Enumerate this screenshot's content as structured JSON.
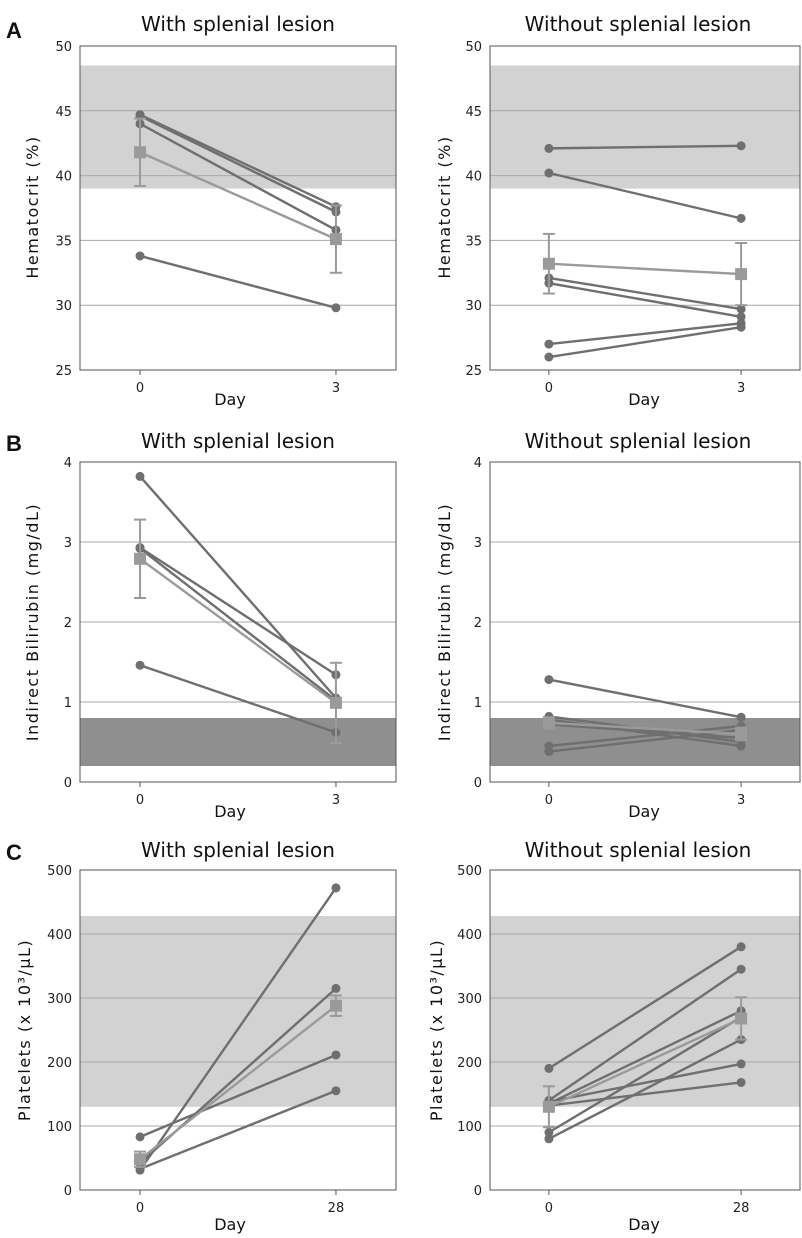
{
  "figure": {
    "panels": [
      {
        "letter": "A"
      },
      {
        "letter": "B"
      },
      {
        "letter": "C"
      }
    ]
  },
  "colors": {
    "individual_line": "#6f6f6f",
    "mean_line": "#9a9a9a",
    "grid": "#a8a8a8",
    "normal_band_light": "#d2d2d2",
    "normal_band_dark": "#8f8f8f",
    "axis": "#555555"
  },
  "chart_data": [
    {
      "type": "line",
      "panel": "A",
      "title": "With splenial lesion",
      "xlabel": "Day",
      "ylabel": "Hematocrit (%)",
      "ylim": [
        25,
        50
      ],
      "yticks": [
        "25",
        "30",
        "35",
        "40",
        "45",
        "50"
      ],
      "categories": [
        "0",
        "3"
      ],
      "normal_range": [
        39,
        48.5
      ],
      "normal_range_shade": "light",
      "grid": true,
      "series": [
        {
          "values": [
            44.7,
            37.6
          ]
        },
        {
          "values": [
            44.6,
            37.2
          ]
        },
        {
          "values": [
            44.0,
            35.8
          ]
        },
        {
          "values": [
            33.8,
            29.8
          ]
        }
      ],
      "mean": {
        "values": [
          41.8,
          35.1
        ],
        "error": [
          2.6,
          2.6
        ]
      }
    },
    {
      "type": "line",
      "panel": "A",
      "title": "Without splenial lesion",
      "xlabel": "Day",
      "ylabel": "Hematocrit (%)",
      "ylim": [
        25,
        50
      ],
      "yticks": [
        "25",
        "30",
        "35",
        "40",
        "45",
        "50"
      ],
      "categories": [
        "0",
        "3"
      ],
      "normal_range": [
        39,
        48.5
      ],
      "normal_range_shade": "light",
      "grid": true,
      "series": [
        {
          "values": [
            42.1,
            42.3
          ]
        },
        {
          "values": [
            40.2,
            36.7
          ]
        },
        {
          "values": [
            32.1,
            29.7
          ]
        },
        {
          "values": [
            31.7,
            29.1
          ]
        },
        {
          "values": [
            27.0,
            28.6
          ]
        },
        {
          "values": [
            26.0,
            28.3
          ]
        }
      ],
      "mean": {
        "values": [
          33.2,
          32.4
        ],
        "error": [
          2.3,
          2.4
        ]
      }
    },
    {
      "type": "line",
      "panel": "B",
      "title": "With splenial lesion",
      "xlabel": "Day",
      "ylabel": "Indirect Bilirubin (mg/dL)",
      "ylim": [
        0,
        4
      ],
      "yticks": [
        "0",
        "1",
        "2",
        "3",
        "4"
      ],
      "categories": [
        "0",
        "3"
      ],
      "normal_range": [
        0.2,
        0.8
      ],
      "normal_range_shade": "dark",
      "grid": true,
      "series": [
        {
          "values": [
            3.82,
            1.05
          ]
        },
        {
          "values": [
            2.93,
            1.34
          ]
        },
        {
          "values": [
            2.92,
            1.02
          ]
        },
        {
          "values": [
            1.46,
            0.62
          ]
        }
      ],
      "mean": {
        "values": [
          2.79,
          0.99
        ],
        "error": [
          0.49,
          0.5
        ]
      }
    },
    {
      "type": "line",
      "panel": "B",
      "title": "Without splenial lesion",
      "xlabel": "Day",
      "ylabel": "Indirect Bilirubin (mg/dL)",
      "ylim": [
        0,
        4
      ],
      "yticks": [
        "0",
        "1",
        "2",
        "3",
        "4"
      ],
      "categories": [
        "0",
        "3"
      ],
      "normal_range": [
        0.2,
        0.8
      ],
      "normal_range_shade": "dark",
      "grid": true,
      "series": [
        {
          "values": [
            1.28,
            0.81
          ]
        },
        {
          "values": [
            0.82,
            0.5
          ]
        },
        {
          "values": [
            0.78,
            0.45
          ]
        },
        {
          "values": [
            0.72,
            0.55
          ]
        },
        {
          "values": [
            0.45,
            0.7
          ]
        },
        {
          "values": [
            0.38,
            0.65
          ]
        }
      ],
      "mean": {
        "values": [
          0.74,
          0.6
        ],
        "error": [
          0.07,
          0.08
        ]
      }
    },
    {
      "type": "line",
      "panel": "C",
      "title": "With splenial lesion",
      "xlabel": "Day",
      "ylabel": "Platelets (x 10³/μL)",
      "ylim": [
        0,
        500
      ],
      "yticks": [
        "0",
        "100",
        "200",
        "300",
        "400",
        "500"
      ],
      "categories": [
        "0",
        "28"
      ],
      "normal_range": [
        130,
        428
      ],
      "normal_range_shade": "light",
      "grid": true,
      "series": [
        {
          "values": [
            31,
            472
          ]
        },
        {
          "values": [
            42,
            315
          ]
        },
        {
          "values": [
            83,
            211
          ]
        },
        {
          "values": [
            33,
            155
          ]
        }
      ],
      "mean": {
        "values": [
          48,
          288
        ],
        "error": [
          12,
          16
        ]
      }
    },
    {
      "type": "line",
      "panel": "C",
      "title": "Without splenial lesion",
      "xlabel": "Day",
      "ylabel": "Platelets (x 10³/μL)",
      "ylim": [
        0,
        500
      ],
      "yticks": [
        "0",
        "100",
        "200",
        "300",
        "400",
        "500"
      ],
      "categories": [
        "0",
        "28"
      ],
      "normal_range": [
        130,
        428
      ],
      "normal_range_shade": "light",
      "grid": true,
      "series": [
        {
          "values": [
            190,
            380
          ]
        },
        {
          "values": [
            140,
            345
          ]
        },
        {
          "values": [
            135,
            280
          ]
        },
        {
          "values": [
            90,
            270
          ]
        },
        {
          "values": [
            80,
            235
          ]
        },
        {
          "values": [
            138,
            197
          ]
        },
        {
          "values": [
            132,
            168
          ]
        }
      ],
      "mean": {
        "values": [
          130,
          268
        ],
        "error": [
          32,
          33
        ]
      }
    }
  ]
}
